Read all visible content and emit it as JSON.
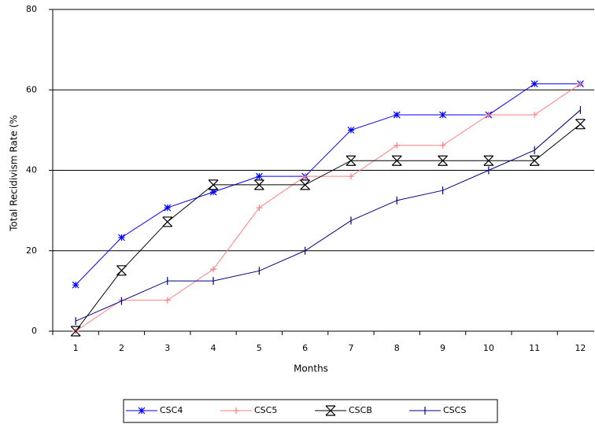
{
  "chart_data": {
    "type": "line",
    "x_label": "Months",
    "y_label": "Total Recidivism Rate (%",
    "categories": [
      "1",
      "2",
      "3",
      "4",
      "5",
      "6",
      "7",
      "8",
      "9",
      "10",
      "11",
      "12"
    ],
    "series": [
      {
        "name": "CSC4",
        "color": "#0000ff",
        "values": [
          11.5,
          23.3,
          30.7,
          34.6,
          38.5,
          38.5,
          50,
          53.8,
          53.8,
          53.8,
          61.5,
          61.5
        ]
      },
      {
        "name": "CSC5",
        "color": "#ff8080",
        "values": [
          0,
          7.7,
          7.7,
          15.4,
          30.7,
          38.5,
          38.5,
          46.2,
          46.2,
          53.8,
          53.8,
          61.5
        ]
      },
      {
        "name": "CSCB",
        "color": "#000000",
        "values": [
          0,
          15.1,
          27.2,
          36.4,
          36.4,
          36.4,
          42.4,
          42.4,
          42.4,
          42.4,
          42.4,
          51.5
        ]
      },
      {
        "name": "CSCS",
        "color": "#000080",
        "values": [
          2.5,
          7.5,
          12.5,
          12.5,
          15,
          20,
          27.5,
          32.5,
          35,
          40,
          45,
          55
        ]
      }
    ],
    "ylim": [
      0,
      80
    ],
    "yticks": [
      0,
      20,
      40,
      60,
      80
    ],
    "grid": true
  }
}
